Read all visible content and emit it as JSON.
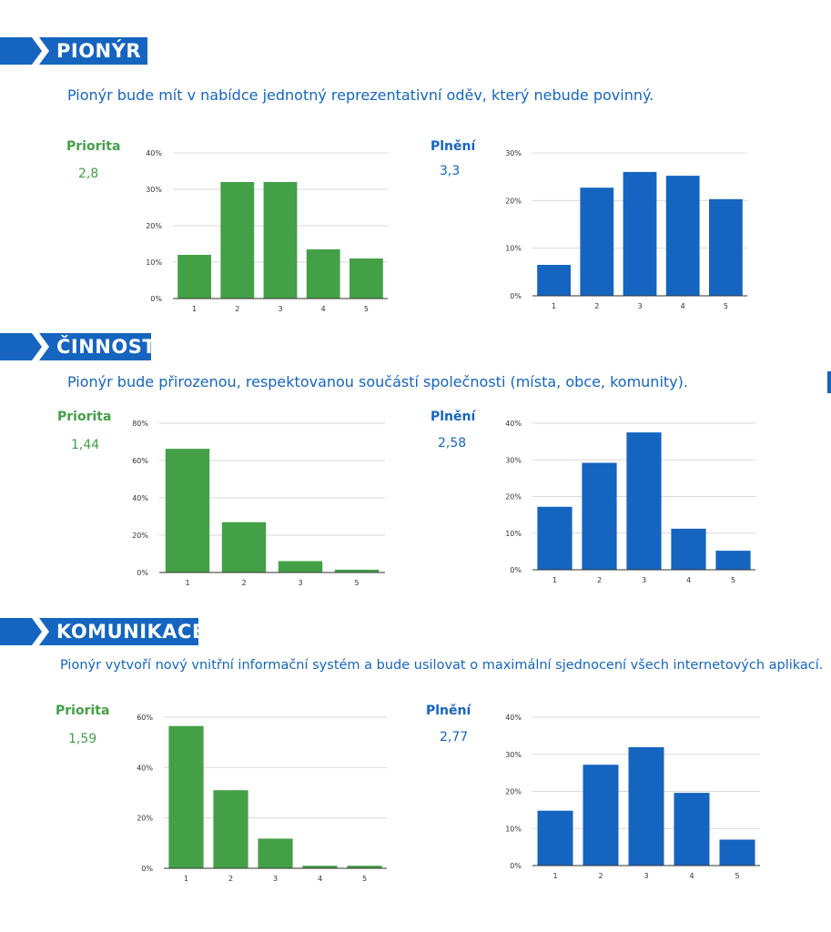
{
  "colors": {
    "banner": "#1565c0",
    "priority": "#43a047",
    "fulfillment": "#1565c0",
    "grid": "#d9d9d9"
  },
  "sections": [
    {
      "title": "PIONÝR",
      "statement": "Pionýr bude mít v nabídce jednotný reprezentativní oděv, který nebude povinný.",
      "priority_label": "Priorita",
      "priority_value": "2,8",
      "fulfillment_label": "Plnění",
      "fulfillment_value": "3,3"
    },
    {
      "title": "ČINNOST",
      "statement": "Pionýr bude přirozenou, respektovanou součástí společnosti (místa, obce, komunity).",
      "priority_label": "Priorita",
      "priority_value": "1,44",
      "fulfillment_label": "Plnění",
      "fulfillment_value": "2,58"
    },
    {
      "title": "KOMUNIKACE",
      "statement": "Pionýr vytvoří nový vnitřní informační systém a bude usilovat o maximální sjednocení všech internetových aplikací.",
      "priority_label": "Priorita",
      "priority_value": "1,59",
      "fulfillment_label": "Plnění",
      "fulfillment_value": "2,77"
    }
  ],
  "chart_data": [
    {
      "type": "bar",
      "categories": [
        "1",
        "2",
        "3",
        "4",
        "5"
      ],
      "values": [
        12,
        32,
        32,
        13.5,
        11
      ],
      "ylim": [
        0,
        40
      ],
      "yticks": [
        "0%",
        "10%",
        "20%",
        "30%",
        "40%"
      ],
      "color": "#43a047",
      "grid": true
    },
    {
      "type": "bar",
      "categories": [
        "1",
        "2",
        "3",
        "4",
        "5"
      ],
      "values": [
        6.5,
        22.7,
        26,
        25.2,
        20.3
      ],
      "ylim": [
        0,
        30
      ],
      "yticks": [
        "0%",
        "10%",
        "20%",
        "30%"
      ],
      "color": "#1565c0",
      "grid": true
    },
    {
      "type": "bar",
      "categories": [
        "1",
        "2",
        "3",
        "5"
      ],
      "values": [
        66.3,
        27,
        6.1,
        1.5
      ],
      "ylim": [
        0,
        80
      ],
      "yticks": [
        "0%",
        "20%",
        "40%",
        "60%",
        "80%"
      ],
      "color": "#43a047",
      "grid": true
    },
    {
      "type": "bar",
      "categories": [
        "1",
        "2",
        "3",
        "4",
        "5"
      ],
      "values": [
        17.2,
        29.2,
        37.5,
        11.2,
        5.2
      ],
      "ylim": [
        0,
        40
      ],
      "yticks": [
        "0%",
        "10%",
        "20%",
        "30%",
        "40%"
      ],
      "color": "#1565c0",
      "grid": true
    },
    {
      "type": "bar",
      "categories": [
        "1",
        "2",
        "3",
        "4",
        "5"
      ],
      "values": [
        56.5,
        31,
        11.8,
        1,
        1
      ],
      "ylim": [
        0,
        60
      ],
      "yticks": [
        "0%",
        "20%",
        "40%",
        "60%"
      ],
      "color": "#43a047",
      "grid": true
    },
    {
      "type": "bar",
      "categories": [
        "1",
        "2",
        "3",
        "4",
        "5"
      ],
      "values": [
        14.8,
        27.2,
        31.9,
        19.6,
        7
      ],
      "ylim": [
        0,
        40
      ],
      "yticks": [
        "0%",
        "10%",
        "20%",
        "30%",
        "40%"
      ],
      "color": "#1565c0",
      "grid": true
    }
  ]
}
